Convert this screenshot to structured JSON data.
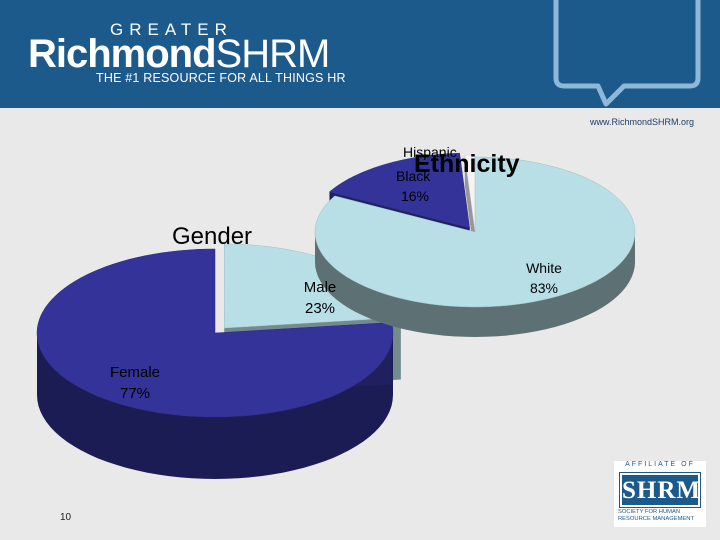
{
  "header": {
    "greater": "GREATER",
    "brand": "Richmond",
    "brand_suffix": "SHRM",
    "tagline": "THE #1 RESOURCE FOR ALL THINGS HR"
  },
  "website": "www.RichmondSHRM.org",
  "page_number": "10",
  "affiliate": {
    "top": "AFFILIATE OF",
    "logo": "SHRM",
    "tagline": "SOCIETY FOR HUMAN RESOURCE MANAGEMENT"
  },
  "colors": {
    "header": "#1d5a8c",
    "navy": "#333399",
    "light_blue": "#b9dfe6",
    "background": "#e9e9e9"
  },
  "chart_data": [
    {
      "type": "pie",
      "title": "Gender",
      "style": "3d",
      "slices": [
        {
          "label": "Male",
          "value": 23,
          "display": "23%",
          "color": "#b9dfe6"
        },
        {
          "label": "Female",
          "value": 77,
          "display": "77%",
          "color": "#333399"
        }
      ]
    },
    {
      "type": "pie",
      "title": "Ethnicity",
      "style": "3d",
      "slices": [
        {
          "label": "White",
          "value": 83,
          "display": "83%",
          "color": "#b9dfe6"
        },
        {
          "label": "Black",
          "value": 16,
          "display": "16%",
          "color": "#333399"
        },
        {
          "label": "Hispanic",
          "value": 1,
          "display": "",
          "color": "#f4f4f4"
        }
      ]
    }
  ]
}
